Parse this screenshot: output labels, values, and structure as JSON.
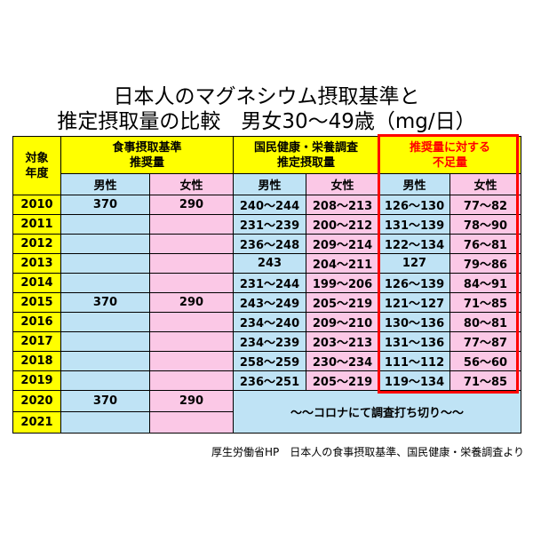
{
  "title": {
    "line1": "日本人のマグネシウム摂取基準と",
    "line2": "推定摂取量の比較　男女30～49歳（mg/日）"
  },
  "headers": {
    "year_col": "対象\n年度",
    "standard": "食事摂取基準\n推奨量",
    "survey": "国民健康・栄養調査\n推定摂取量",
    "shortfall": "推奨量に対する\n不足量",
    "male": "男性",
    "female": "女性"
  },
  "rows": [
    {
      "year": "2010",
      "std_m": "370",
      "std_f": "290",
      "surv_m": "240～244",
      "surv_f": "208～213",
      "short_m": "126～130",
      "short_f": "77～82"
    },
    {
      "year": "2011",
      "std_m": "",
      "std_f": "",
      "surv_m": "231～239",
      "surv_f": "200～212",
      "short_m": "131～139",
      "short_f": "78～90"
    },
    {
      "year": "2012",
      "std_m": "",
      "std_f": "",
      "surv_m": "236～248",
      "surv_f": "209～214",
      "short_m": "122～134",
      "short_f": "76～81"
    },
    {
      "year": "2013",
      "std_m": "",
      "std_f": "",
      "surv_m": "243",
      "surv_f": "204～211",
      "short_m": "127",
      "short_f": "79～86"
    },
    {
      "year": "2014",
      "std_m": "",
      "std_f": "",
      "surv_m": "231～244",
      "surv_f": "199～206",
      "short_m": "126～139",
      "short_f": "84～91"
    },
    {
      "year": "2015",
      "std_m": "370",
      "std_f": "290",
      "surv_m": "243～249",
      "surv_f": "205～219",
      "short_m": "121～127",
      "short_f": "71～85"
    },
    {
      "year": "2016",
      "std_m": "",
      "std_f": "",
      "surv_m": "234～240",
      "surv_f": "209～210",
      "short_m": "130～136",
      "short_f": "80～81"
    },
    {
      "year": "2017",
      "std_m": "",
      "std_f": "",
      "surv_m": "234～239",
      "surv_f": "203～213",
      "short_m": "131～136",
      "short_f": "77～87"
    },
    {
      "year": "2018",
      "std_m": "",
      "std_f": "",
      "surv_m": "258～259",
      "surv_f": "230～234",
      "short_m": "111～112",
      "short_f": "56～60"
    },
    {
      "year": "2019",
      "std_m": "",
      "std_f": "",
      "surv_m": "236～251",
      "surv_f": "205～219",
      "short_m": "119～134",
      "short_f": "71～85"
    }
  ],
  "last_rows": {
    "year_2020": "2020",
    "year_2021": "2021",
    "std_m_2020": "370",
    "std_f_2020": "290",
    "note": "～～コロナにて調査打ち切り～～"
  },
  "source": "厚生労働省HP　日本人の食事摂取基準、国民健康・栄養調査より",
  "colors": {
    "yellow": "#ffff00",
    "blue": "#bfe3f5",
    "pink": "#fbc8e6",
    "red": "#ff0000"
  }
}
